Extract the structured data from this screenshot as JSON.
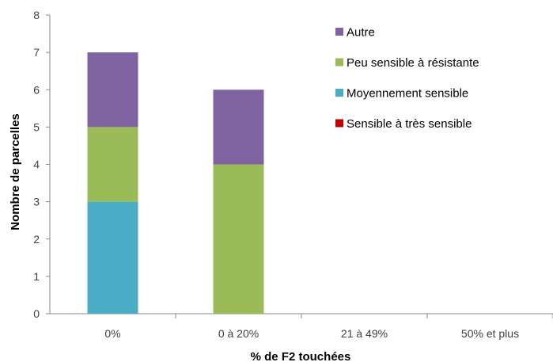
{
  "chart_data": {
    "type": "bar",
    "stacked": true,
    "categories": [
      "0%",
      "0 à 20%",
      "21 à 49%",
      "50% et plus"
    ],
    "series": [
      {
        "name": "Sensible à très sensible",
        "color": "#c00000",
        "values": [
          0,
          0,
          0,
          0
        ]
      },
      {
        "name": "Moyennement sensible",
        "color": "#4bacc6",
        "values": [
          3,
          0,
          0,
          0
        ]
      },
      {
        "name": "Peu sensible à résistante",
        "color": "#9bbb59",
        "values": [
          2,
          4,
          0,
          0
        ]
      },
      {
        "name": "Autre",
        "color": "#8064a2",
        "values": [
          2,
          2,
          0,
          0
        ]
      }
    ],
    "legend_order": [
      "Autre",
      "Peu sensible à résistante",
      "Moyennement sensible",
      "Sensible à très sensible"
    ],
    "xlabel": "% de F2 touchées",
    "ylabel": "Nombre de parcelles",
    "ylim": [
      0,
      8
    ],
    "yticks": [
      0,
      1,
      2,
      3,
      4,
      5,
      6,
      7,
      8
    ],
    "grid": false,
    "legend_position": "top-right"
  }
}
